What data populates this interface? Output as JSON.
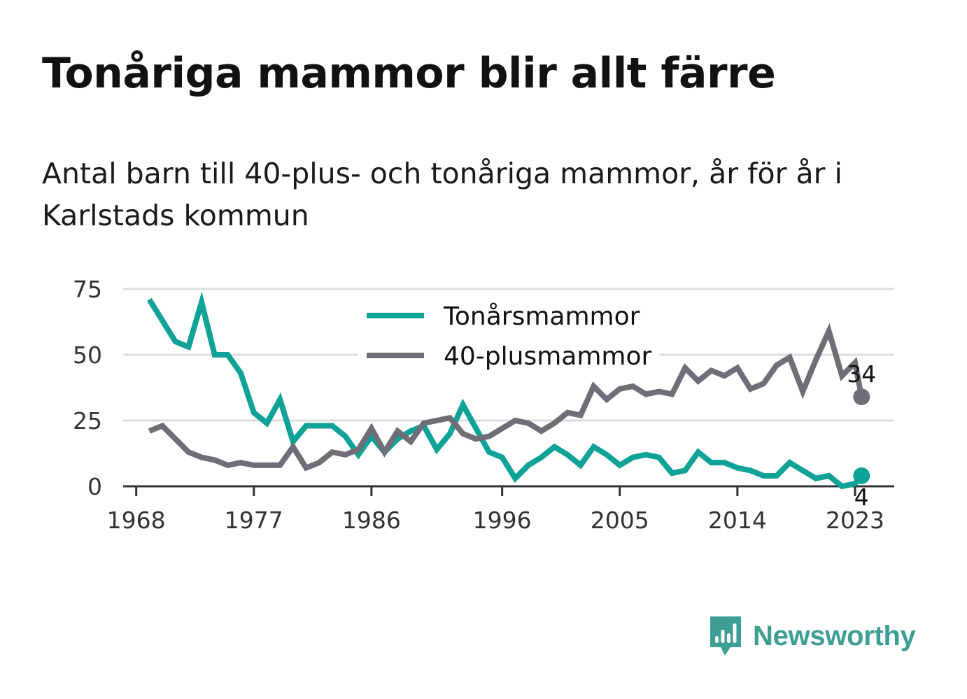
{
  "title": "Tonåriga mammor blir allt färre",
  "subtitle": "Antal barn till 40-plus- och tonåriga mammor, år för år i Karlstads kommun",
  "logo": {
    "text": "Newsworthy",
    "icon": "newsworthy-bar-chart-icon",
    "color": "#3d9e93"
  },
  "chart_data": {
    "type": "line",
    "x": [
      1969,
      1970,
      1971,
      1972,
      1973,
      1974,
      1975,
      1976,
      1977,
      1978,
      1979,
      1980,
      1981,
      1982,
      1983,
      1984,
      1985,
      1986,
      1987,
      1988,
      1989,
      1990,
      1991,
      1992,
      1993,
      1994,
      1995,
      1996,
      1997,
      1998,
      1999,
      2000,
      2001,
      2002,
      2003,
      2004,
      2005,
      2006,
      2007,
      2008,
      2009,
      2010,
      2011,
      2012,
      2013,
      2014,
      2015,
      2016,
      2017,
      2018,
      2019,
      2020,
      2021,
      2022,
      2023
    ],
    "series": [
      {
        "name": "Tonårsmammor",
        "color": "#0fa296",
        "values": [
          71,
          63,
          55,
          53,
          70,
          50,
          50,
          43,
          28,
          24,
          33,
          17,
          23,
          23,
          23,
          19,
          12,
          19,
          13,
          18,
          21,
          23,
          14,
          20,
          31,
          22,
          13,
          11,
          3,
          8,
          11,
          15,
          12,
          8,
          15,
          12,
          8,
          11,
          12,
          11,
          5,
          6,
          13,
          9,
          9,
          7,
          6,
          4,
          4,
          9,
          6,
          3,
          4,
          0,
          1
        ],
        "end_label": "4",
        "end_value": 4
      },
      {
        "name": "40-plusmammor",
        "color": "#6e6e78",
        "values": [
          21,
          23,
          18,
          13,
          11,
          10,
          8,
          9,
          8,
          8,
          8,
          15,
          7,
          9,
          13,
          12,
          14,
          22,
          13,
          21,
          17,
          24,
          25,
          26,
          20,
          18,
          19,
          22,
          25,
          24,
          21,
          24,
          28,
          27,
          38,
          33,
          37,
          38,
          35,
          36,
          35,
          45,
          40,
          44,
          42,
          45,
          37,
          39,
          46,
          49,
          36,
          48,
          59,
          42,
          47
        ],
        "end_label": "34",
        "end_value": 34
      }
    ],
    "end_year": 2023.5,
    "x_ticks": [
      "1968",
      "1977",
      "1986",
      "1996",
      "2005",
      "2014",
      "2023"
    ],
    "x_tick_values": [
      1968,
      1977,
      1986,
      1996,
      2005,
      2014,
      2023
    ],
    "y_ticks": [
      "0",
      "25",
      "50",
      "75"
    ],
    "y_tick_values": [
      0,
      25,
      50,
      75
    ],
    "xlim": [
      1967,
      2026
    ],
    "ylim": [
      0,
      75
    ],
    "grid": true,
    "legend_position": "top-center",
    "xlabel": "",
    "ylabel": ""
  }
}
